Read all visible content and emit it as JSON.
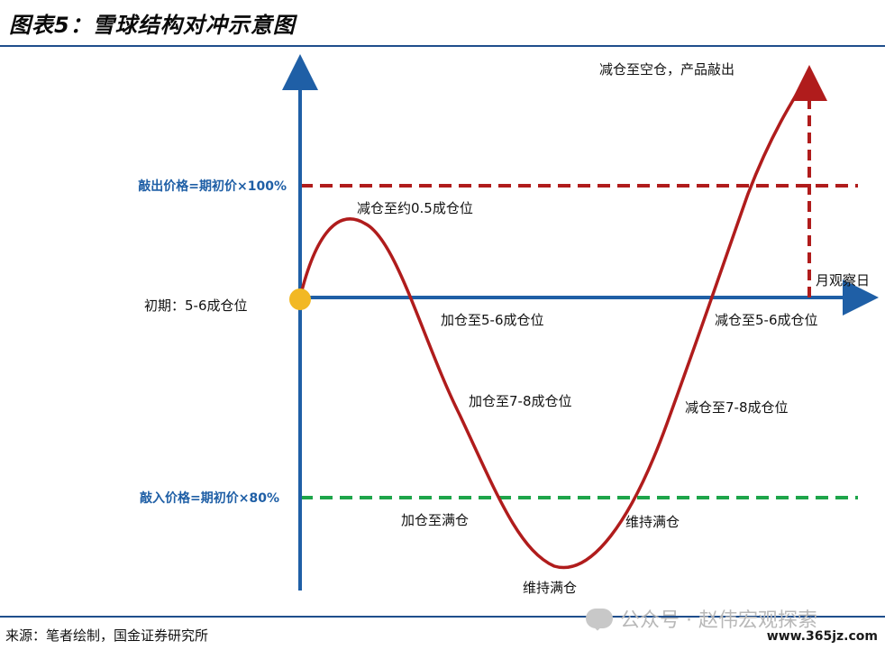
{
  "title": "图表5：雪球结构对冲示意图",
  "footer": {
    "source": "来源：笔者绘制，国金证券研究所",
    "watermark": "公众号 · 赵伟宏观探索",
    "site": "www.365jz.com"
  },
  "diagram": {
    "levels": {
      "knock_out_label": "敲出价格=期初价×100%",
      "knock_in_label": "敲入价格=期初价×80%",
      "initial_label": "初期：5-6成仓位"
    },
    "annotations": {
      "reduce_to_half": "减仓至约0.5成仓位",
      "add_to_5_6": "加仓至5-6成仓位",
      "add_to_7_8": "加仓至7-8成仓位",
      "add_to_full": "加仓至满仓",
      "hold_full_bottom": "维持满仓",
      "hold_full_rise": "维持满仓",
      "reduce_to_7_8": "减仓至7-8成仓位",
      "reduce_to_5_6": "减仓至5-6成仓位",
      "reduce_to_empty": "减仓至空仓，产品敲出",
      "observation_day": "月观察日"
    },
    "colors": {
      "axis": "#1f5fa6",
      "curve": "#b01c1c",
      "knock_out_line": "#b01c1c",
      "knock_in_line": "#1ea54a",
      "level_text": "#1f5fa6",
      "start_dot": "#f2b824"
    }
  }
}
